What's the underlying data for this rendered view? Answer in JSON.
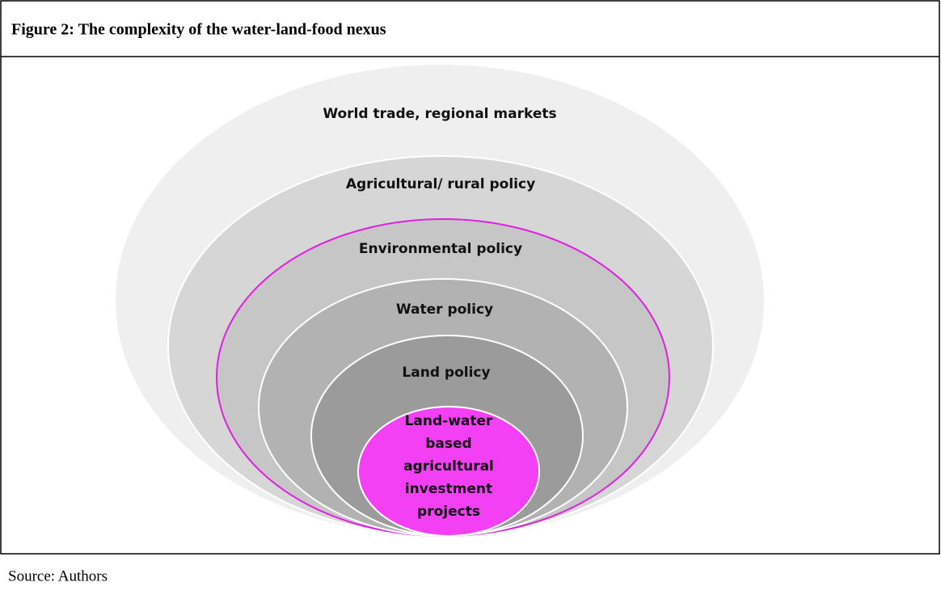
{
  "header": {
    "title": "Figure 2:  The complexity of the water-land-food nexus"
  },
  "layers": [
    {
      "label": "World trade, regional markets"
    },
    {
      "label": "Agricultural/ rural policy"
    },
    {
      "label": "Environmental policy"
    },
    {
      "label": "Water policy"
    },
    {
      "label": "Land policy"
    },
    {
      "lines": [
        "Land-water",
        "based",
        "agricultural",
        "investment",
        "projects"
      ]
    }
  ],
  "footer": {
    "source": "Source: Authors"
  }
}
